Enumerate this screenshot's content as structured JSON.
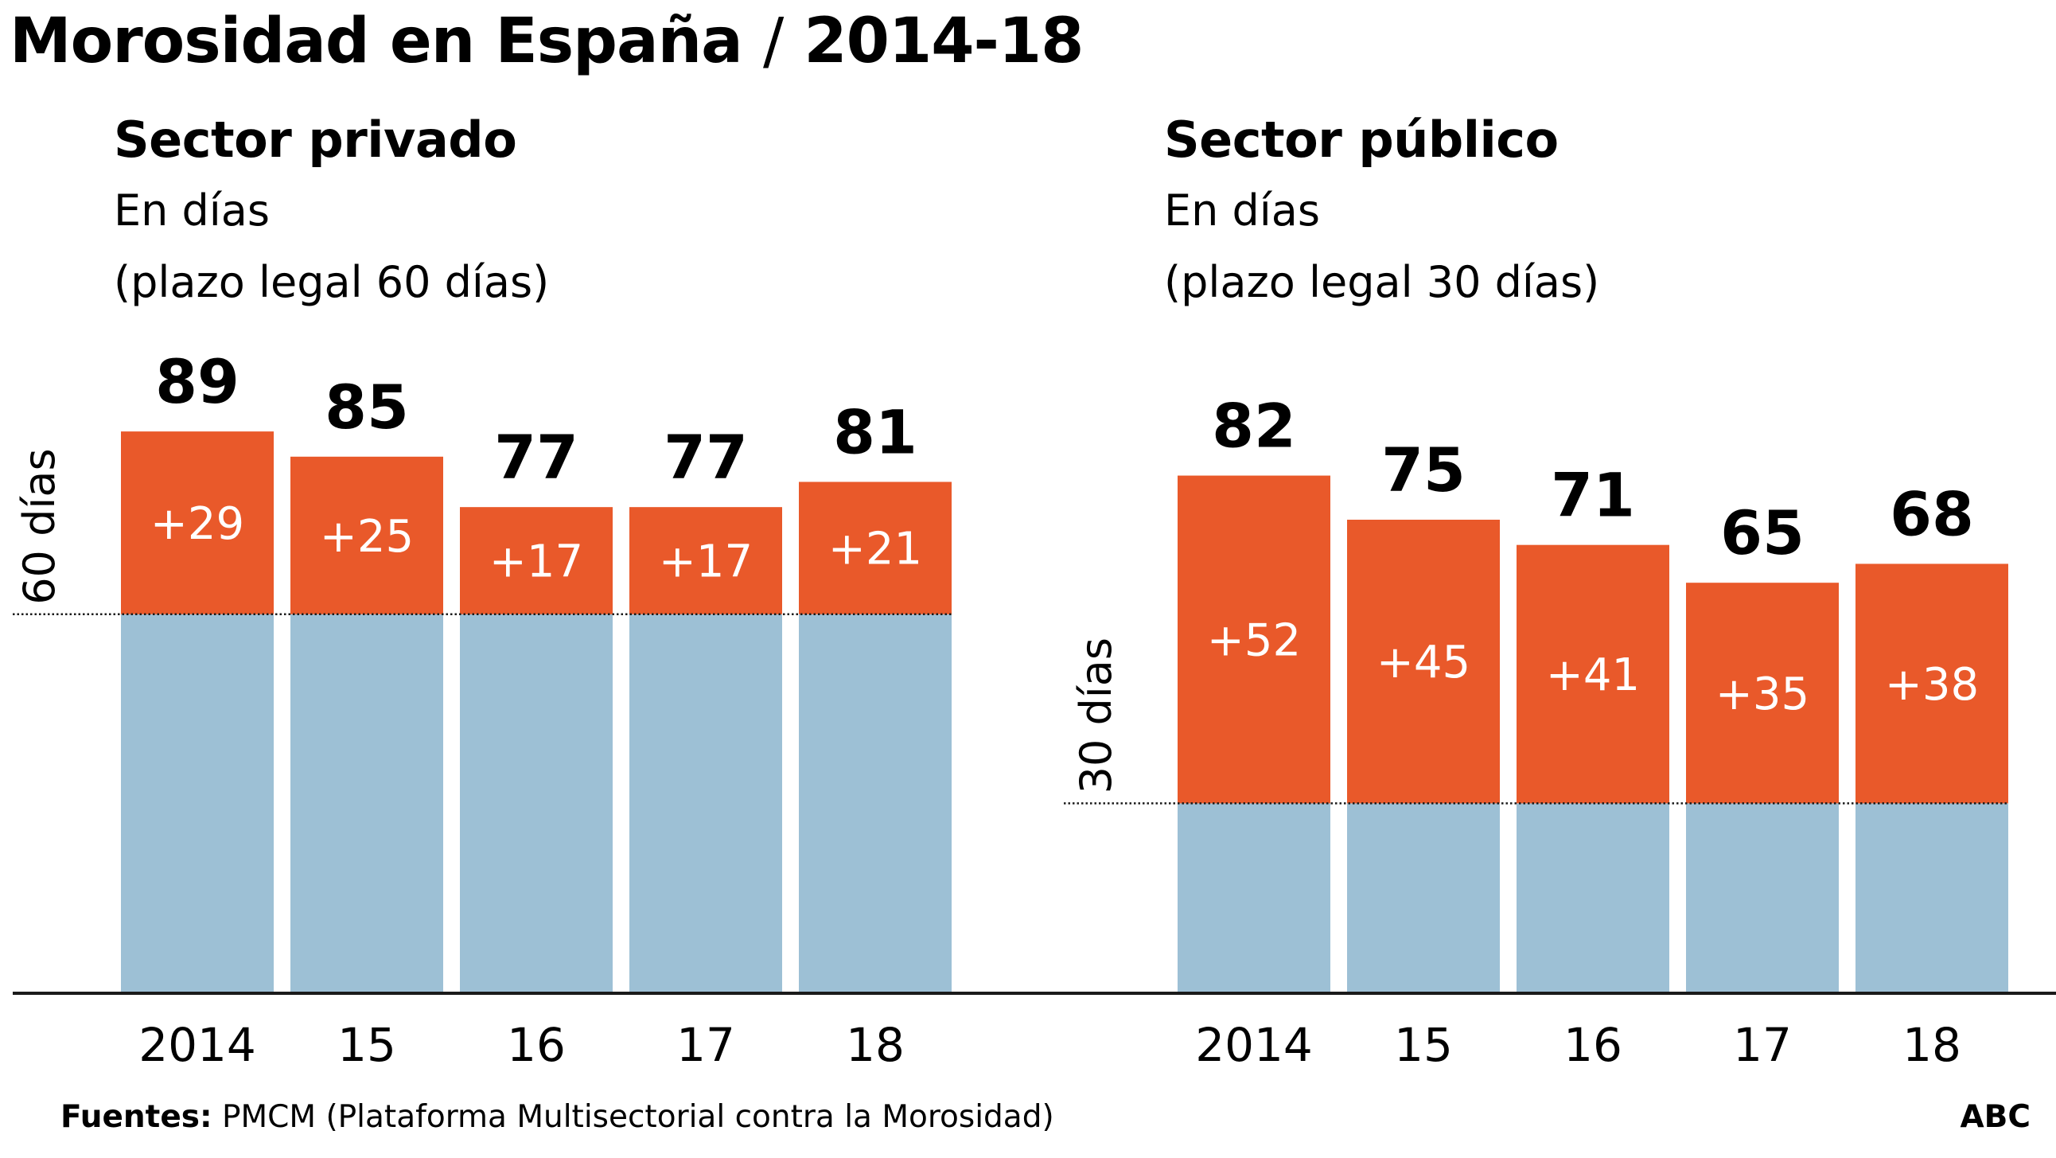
{
  "title": {
    "main": "Morosidad en España",
    "separator": "/",
    "period": "2014-18"
  },
  "colors": {
    "base": "#9dc0d5",
    "excess": "#e9592a",
    "axis": "#1a1a1a",
    "background": "#ffffff"
  },
  "chart_data": [
    {
      "type": "bar",
      "stacked": true,
      "title": "Sector privado",
      "subtitle": [
        "En días",
        "(plazo legal 60 días)"
      ],
      "reference_label": "60 días",
      "legal_limit": 60,
      "categories": [
        "2014",
        "15",
        "16",
        "17",
        "18"
      ],
      "totals": [
        89,
        85,
        77,
        77,
        81
      ],
      "series": [
        {
          "values": [
            60,
            60,
            60,
            60,
            60
          ],
          "color": "#9dc0d5"
        },
        {
          "values": [
            29,
            25,
            17,
            17,
            21
          ],
          "labels": [
            "+29",
            "+25",
            "+17",
            "+17",
            "+21"
          ],
          "color": "#e9592a"
        }
      ],
      "ylim": [
        0,
        89
      ],
      "grid": false,
      "legend": "none"
    },
    {
      "type": "bar",
      "stacked": true,
      "title": "Sector público",
      "subtitle": [
        "En días",
        "(plazo legal 30 días)"
      ],
      "reference_label": "30 días",
      "legal_limit": 30,
      "categories": [
        "2014",
        "15",
        "16",
        "17",
        "18"
      ],
      "totals": [
        82,
        75,
        71,
        65,
        68
      ],
      "series": [
        {
          "values": [
            30,
            30,
            30,
            30,
            30
          ],
          "color": "#9dc0d5"
        },
        {
          "values": [
            52,
            45,
            41,
            35,
            38
          ],
          "labels": [
            "+52",
            "+45",
            "+41",
            "+35",
            "+38"
          ],
          "color": "#e9592a"
        }
      ],
      "ylim": [
        0,
        82
      ],
      "grid": false,
      "legend": "none"
    }
  ],
  "footer": {
    "label": "Fuentes:",
    "text": "PMCM (Plataforma Multisectorial contra la Morosidad)"
  },
  "brand": "ABC"
}
